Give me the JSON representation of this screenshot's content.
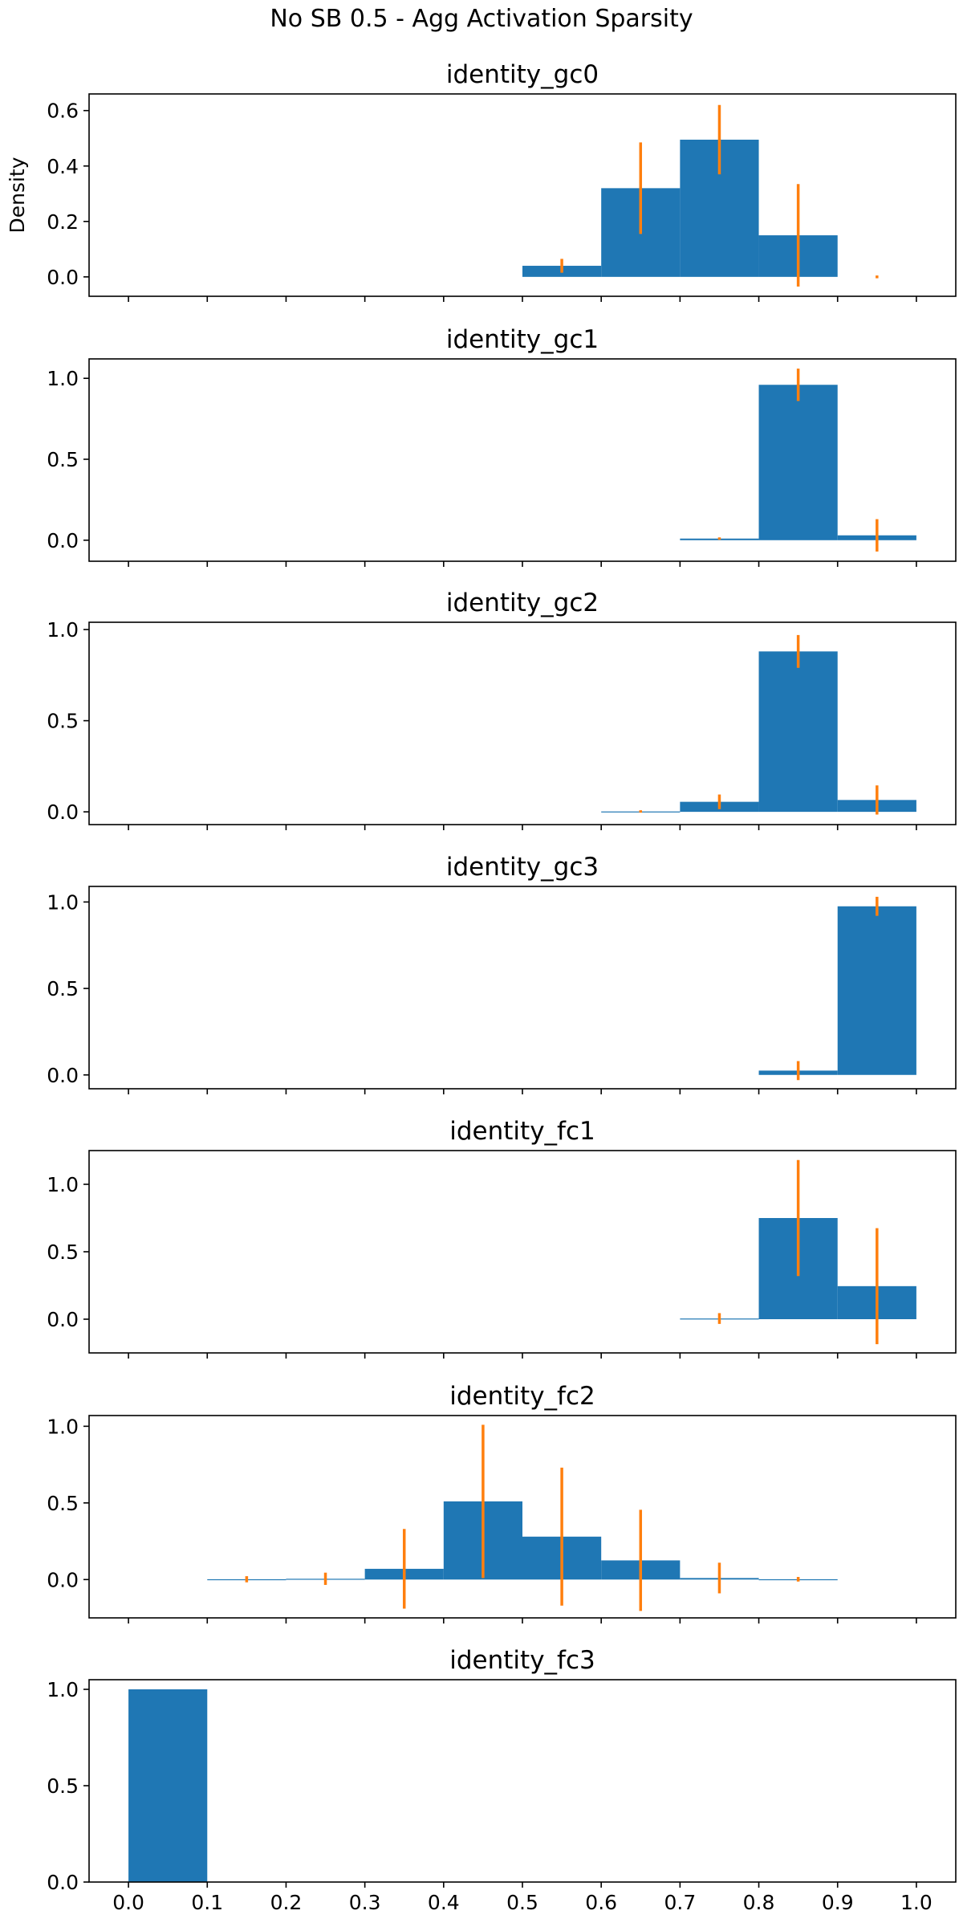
{
  "suptitle": "No SB 0.5 - Agg Activation Sparsity",
  "colors": {
    "bar": "#1f77b4",
    "errorbar": "#ff7f0e",
    "axes": "#000000"
  },
  "chart_data": [
    {
      "type": "bar",
      "title": "identity_gc0",
      "ylabel": "Density",
      "xlabel": "",
      "bin_edges": [
        0.0,
        0.1,
        0.2,
        0.3,
        0.4,
        0.5,
        0.6,
        0.7,
        0.8,
        0.9,
        1.0
      ],
      "values": [
        0,
        0,
        0,
        0,
        0,
        0.04,
        0.32,
        0.495,
        0.15,
        0
      ],
      "error": [
        0,
        0,
        0,
        0,
        0,
        0.025,
        0.165,
        0.125,
        0.185,
        0.005
      ],
      "ylim": [
        -0.07,
        0.66
      ],
      "yticks": [
        0.0,
        0.2,
        0.4,
        0.6
      ],
      "ytick_labels": [
        "0.0",
        "0.2",
        "0.4",
        "0.6"
      ],
      "xlim": [
        -0.05,
        1.05
      ],
      "show_xtick_labels": false,
      "grid": false
    },
    {
      "type": "bar",
      "title": "identity_gc1",
      "bin_edges": [
        0.0,
        0.1,
        0.2,
        0.3,
        0.4,
        0.5,
        0.6,
        0.7,
        0.8,
        0.9,
        1.0
      ],
      "values": [
        0,
        0,
        0,
        0,
        0,
        0,
        0,
        0.01,
        0.96,
        0.03
      ],
      "error": [
        0,
        0,
        0,
        0,
        0,
        0,
        0,
        0.005,
        0.1,
        0.1
      ],
      "ylim": [
        -0.13,
        1.12
      ],
      "yticks": [
        0.0,
        0.5,
        1.0
      ],
      "ytick_labels": [
        "0.0",
        "0.5",
        "1.0"
      ],
      "xlim": [
        -0.05,
        1.05
      ],
      "show_xtick_labels": false,
      "grid": false
    },
    {
      "type": "bar",
      "title": "identity_gc2",
      "bin_edges": [
        0.0,
        0.1,
        0.2,
        0.3,
        0.4,
        0.5,
        0.6,
        0.7,
        0.8,
        0.9,
        1.0
      ],
      "values": [
        0,
        0,
        0,
        0,
        0,
        0,
        0.002,
        0.055,
        0.88,
        0.065
      ],
      "error": [
        0,
        0,
        0,
        0,
        0,
        0,
        0.004,
        0.04,
        0.09,
        0.08
      ],
      "ylim": [
        -0.07,
        1.04
      ],
      "yticks": [
        0.0,
        0.5,
        1.0
      ],
      "ytick_labels": [
        "0.0",
        "0.5",
        "1.0"
      ],
      "xlim": [
        -0.05,
        1.05
      ],
      "show_xtick_labels": false,
      "grid": false
    },
    {
      "type": "bar",
      "title": "identity_gc3",
      "bin_edges": [
        0.0,
        0.1,
        0.2,
        0.3,
        0.4,
        0.5,
        0.6,
        0.7,
        0.8,
        0.9,
        1.0
      ],
      "values": [
        0,
        0,
        0,
        0,
        0,
        0,
        0,
        0,
        0.025,
        0.975
      ],
      "error": [
        0,
        0,
        0,
        0,
        0,
        0,
        0,
        0,
        0.055,
        0.055
      ],
      "ylim": [
        -0.08,
        1.09
      ],
      "yticks": [
        0.0,
        0.5,
        1.0
      ],
      "ytick_labels": [
        "0.0",
        "0.5",
        "1.0"
      ],
      "xlim": [
        -0.05,
        1.05
      ],
      "show_xtick_labels": false,
      "grid": false
    },
    {
      "type": "bar",
      "title": "identity_fc1",
      "bin_edges": [
        0.0,
        0.1,
        0.2,
        0.3,
        0.4,
        0.5,
        0.6,
        0.7,
        0.8,
        0.9,
        1.0
      ],
      "values": [
        0,
        0,
        0,
        0,
        0,
        0,
        0,
        0.005,
        0.75,
        0.245
      ],
      "error": [
        0,
        0,
        0,
        0,
        0,
        0,
        0,
        0.04,
        0.43,
        0.43
      ],
      "ylim": [
        -0.25,
        1.25
      ],
      "yticks": [
        0.0,
        0.5,
        1.0
      ],
      "ytick_labels": [
        "0.0",
        "0.5",
        "1.0"
      ],
      "xlim": [
        -0.05,
        1.05
      ],
      "show_xtick_labels": false,
      "grid": false
    },
    {
      "type": "bar",
      "title": "identity_fc2",
      "bin_edges": [
        0.0,
        0.1,
        0.2,
        0.3,
        0.4,
        0.5,
        0.6,
        0.7,
        0.8,
        0.9,
        1.0
      ],
      "values": [
        0,
        0.002,
        0.005,
        0.07,
        0.51,
        0.28,
        0.125,
        0.01,
        0.002,
        0
      ],
      "error": [
        0,
        0.02,
        0.04,
        0.26,
        0.5,
        0.45,
        0.33,
        0.1,
        0.015,
        0
      ],
      "ylim": [
        -0.25,
        1.07
      ],
      "yticks": [
        0.0,
        0.5,
        1.0
      ],
      "ytick_labels": [
        "0.0",
        "0.5",
        "1.0"
      ],
      "xlim": [
        -0.05,
        1.05
      ],
      "show_xtick_labels": false,
      "grid": false
    },
    {
      "type": "bar",
      "title": "identity_fc3",
      "bin_edges": [
        0.0,
        0.1,
        0.2,
        0.3,
        0.4,
        0.5,
        0.6,
        0.7,
        0.8,
        0.9,
        1.0
      ],
      "values": [
        1.0,
        0,
        0,
        0,
        0,
        0,
        0,
        0,
        0,
        0
      ],
      "error": [
        0,
        0,
        0,
        0,
        0,
        0,
        0,
        0,
        0,
        0
      ],
      "ylim": [
        0.0,
        1.05
      ],
      "yticks": [
        0.0,
        0.5,
        1.0
      ],
      "ytick_labels": [
        "0.0",
        "0.5",
        "1.0"
      ],
      "xlim": [
        -0.05,
        1.05
      ],
      "xticks": [
        0.0,
        0.1,
        0.2,
        0.3,
        0.4,
        0.5,
        0.6,
        0.7,
        0.8,
        0.9,
        1.0
      ],
      "xtick_labels": [
        "0.0",
        "0.1",
        "0.2",
        "0.3",
        "0.4",
        "0.5",
        "0.6",
        "0.7",
        "0.8",
        "0.9",
        "1.0"
      ],
      "show_xtick_labels": true,
      "grid": false
    }
  ]
}
